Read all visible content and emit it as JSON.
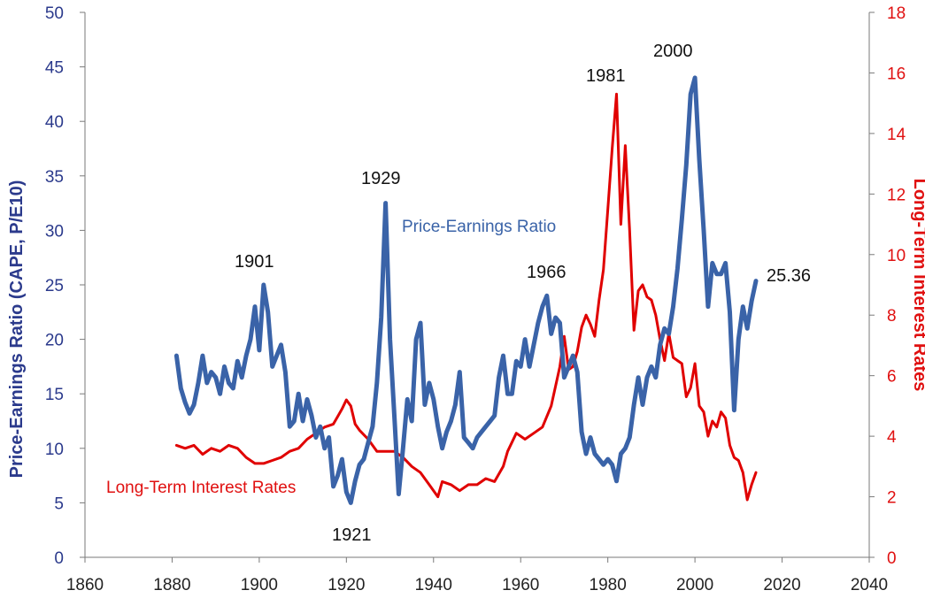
{
  "chart_data": {
    "type": "line",
    "title": "",
    "xlabel": "",
    "ylabel_left": "Price-Earnings Ratio (CAPE, P/E10)",
    "ylabel_right": "Long-Term Interest Rates",
    "xlim": [
      1860,
      2040
    ],
    "ylim_left": [
      0,
      50
    ],
    "ylim_right": [
      0,
      18
    ],
    "x_ticks": [
      "1860",
      "1880",
      "1900",
      "1920",
      "1940",
      "1960",
      "1980",
      "2000",
      "2020",
      "2040"
    ],
    "y_left_ticks": [
      "0",
      "5",
      "10",
      "15",
      "20",
      "25",
      "30",
      "35",
      "40",
      "45",
      "50"
    ],
    "y_right_ticks": [
      "0",
      "2",
      "4",
      "6",
      "8",
      "10",
      "12",
      "14",
      "16",
      "18"
    ],
    "grid": false,
    "series": [
      {
        "name": "Price-Earnings Ratio",
        "axis": "left",
        "color": "#3a63a8",
        "points": [
          [
            1881,
            18.5
          ],
          [
            1882,
            15.5
          ],
          [
            1883,
            14.2
          ],
          [
            1884,
            13.2
          ],
          [
            1885,
            14.0
          ],
          [
            1886,
            16.0
          ],
          [
            1887,
            18.5
          ],
          [
            1888,
            16.0
          ],
          [
            1889,
            17.0
          ],
          [
            1890,
            16.5
          ],
          [
            1891,
            15.0
          ],
          [
            1892,
            17.5
          ],
          [
            1893,
            16.0
          ],
          [
            1894,
            15.5
          ],
          [
            1895,
            18.0
          ],
          [
            1896,
            16.5
          ],
          [
            1897,
            18.5
          ],
          [
            1898,
            20.0
          ],
          [
            1899,
            23.0
          ],
          [
            1900,
            19.0
          ],
          [
            1901,
            25.0
          ],
          [
            1902,
            22.5
          ],
          [
            1903,
            17.5
          ],
          [
            1904,
            18.5
          ],
          [
            1905,
            19.5
          ],
          [
            1906,
            17.0
          ],
          [
            1907,
            12.0
          ],
          [
            1908,
            12.5
          ],
          [
            1909,
            15.0
          ],
          [
            1910,
            12.5
          ],
          [
            1911,
            14.5
          ],
          [
            1912,
            13.0
          ],
          [
            1913,
            11.0
          ],
          [
            1914,
            12.0
          ],
          [
            1915,
            10.0
          ],
          [
            1916,
            11.0
          ],
          [
            1917,
            6.5
          ],
          [
            1918,
            7.5
          ],
          [
            1919,
            9.0
          ],
          [
            1920,
            6.0
          ],
          [
            1921,
            5.0
          ],
          [
            1922,
            7.0
          ],
          [
            1923,
            8.5
          ],
          [
            1924,
            9.0
          ],
          [
            1925,
            10.5
          ],
          [
            1926,
            12.0
          ],
          [
            1927,
            16.0
          ],
          [
            1928,
            22.0
          ],
          [
            1929,
            32.5
          ],
          [
            1930,
            20.0
          ],
          [
            1931,
            13.0
          ],
          [
            1932,
            5.8
          ],
          [
            1933,
            10.0
          ],
          [
            1934,
            14.5
          ],
          [
            1935,
            12.5
          ],
          [
            1936,
            20.0
          ],
          [
            1937,
            21.5
          ],
          [
            1938,
            14.0
          ],
          [
            1939,
            16.0
          ],
          [
            1940,
            14.5
          ],
          [
            1941,
            12.0
          ],
          [
            1942,
            10.0
          ],
          [
            1943,
            11.5
          ],
          [
            1944,
            12.5
          ],
          [
            1945,
            14.0
          ],
          [
            1946,
            17.0
          ],
          [
            1947,
            11.0
          ],
          [
            1948,
            10.5
          ],
          [
            1949,
            10.0
          ],
          [
            1950,
            11.0
          ],
          [
            1951,
            11.5
          ],
          [
            1952,
            12.0
          ],
          [
            1953,
            12.5
          ],
          [
            1954,
            13.0
          ],
          [
            1955,
            16.5
          ],
          [
            1956,
            18.5
          ],
          [
            1957,
            15.0
          ],
          [
            1958,
            15.0
          ],
          [
            1959,
            18.0
          ],
          [
            1960,
            17.5
          ],
          [
            1961,
            20.0
          ],
          [
            1962,
            17.5
          ],
          [
            1963,
            19.5
          ],
          [
            1964,
            21.5
          ],
          [
            1965,
            23.0
          ],
          [
            1966,
            24.0
          ],
          [
            1967,
            20.5
          ],
          [
            1968,
            22.0
          ],
          [
            1969,
            21.5
          ],
          [
            1970,
            16.5
          ],
          [
            1971,
            17.5
          ],
          [
            1972,
            18.5
          ],
          [
            1973,
            17.0
          ],
          [
            1974,
            11.5
          ],
          [
            1975,
            9.5
          ],
          [
            1976,
            11.0
          ],
          [
            1977,
            9.5
          ],
          [
            1978,
            9.0
          ],
          [
            1979,
            8.5
          ],
          [
            1980,
            9.0
          ],
          [
            1981,
            8.5
          ],
          [
            1982,
            7.0
          ],
          [
            1983,
            9.5
          ],
          [
            1984,
            10.0
          ],
          [
            1985,
            11.0
          ],
          [
            1986,
            14.0
          ],
          [
            1987,
            16.5
          ],
          [
            1988,
            14.0
          ],
          [
            1989,
            16.5
          ],
          [
            1990,
            17.5
          ],
          [
            1991,
            16.5
          ],
          [
            1992,
            19.5
          ],
          [
            1993,
            21.0
          ],
          [
            1994,
            20.5
          ],
          [
            1995,
            23.0
          ],
          [
            1996,
            26.5
          ],
          [
            1997,
            31.0
          ],
          [
            1998,
            36.0
          ],
          [
            1999,
            42.5
          ],
          [
            2000,
            44.0
          ],
          [
            2001,
            36.5
          ],
          [
            2002,
            30.0
          ],
          [
            2003,
            23.0
          ],
          [
            2004,
            27.0
          ],
          [
            2005,
            26.0
          ],
          [
            2006,
            26.0
          ],
          [
            2007,
            27.0
          ],
          [
            2008,
            22.5
          ],
          [
            2009,
            13.5
          ],
          [
            2010,
            20.0
          ],
          [
            2011,
            23.0
          ],
          [
            2012,
            21.0
          ],
          [
            2013,
            23.5
          ],
          [
            2014,
            25.36
          ]
        ]
      },
      {
        "name": "Long-Term Interest Rates",
        "axis": "right",
        "color": "#e00000",
        "points": [
          [
            1881,
            3.7
          ],
          [
            1883,
            3.6
          ],
          [
            1885,
            3.7
          ],
          [
            1887,
            3.4
          ],
          [
            1889,
            3.6
          ],
          [
            1891,
            3.5
          ],
          [
            1893,
            3.7
          ],
          [
            1895,
            3.6
          ],
          [
            1897,
            3.3
          ],
          [
            1899,
            3.1
          ],
          [
            1901,
            3.1
          ],
          [
            1903,
            3.2
          ],
          [
            1905,
            3.3
          ],
          [
            1907,
            3.5
          ],
          [
            1909,
            3.6
          ],
          [
            1911,
            3.9
          ],
          [
            1913,
            4.1
          ],
          [
            1915,
            4.3
          ],
          [
            1917,
            4.4
          ],
          [
            1919,
            4.9
          ],
          [
            1920,
            5.2
          ],
          [
            1921,
            5.0
          ],
          [
            1922,
            4.4
          ],
          [
            1923,
            4.2
          ],
          [
            1925,
            3.9
          ],
          [
            1927,
            3.5
          ],
          [
            1929,
            3.5
          ],
          [
            1931,
            3.5
          ],
          [
            1933,
            3.3
          ],
          [
            1935,
            3.0
          ],
          [
            1937,
            2.8
          ],
          [
            1939,
            2.4
          ],
          [
            1941,
            2.0
          ],
          [
            1942,
            2.5
          ],
          [
            1944,
            2.4
          ],
          [
            1946,
            2.2
          ],
          [
            1948,
            2.4
          ],
          [
            1950,
            2.4
          ],
          [
            1952,
            2.6
          ],
          [
            1954,
            2.5
          ],
          [
            1956,
            3.0
          ],
          [
            1957,
            3.5
          ],
          [
            1959,
            4.1
          ],
          [
            1961,
            3.9
          ],
          [
            1963,
            4.1
          ],
          [
            1965,
            4.3
          ],
          [
            1967,
            5.0
          ],
          [
            1969,
            6.3
          ],
          [
            1970,
            7.3
          ],
          [
            1971,
            6.2
          ],
          [
            1972,
            6.3
          ],
          [
            1973,
            6.8
          ],
          [
            1974,
            7.6
          ],
          [
            1975,
            8.0
          ],
          [
            1976,
            7.7
          ],
          [
            1977,
            7.3
          ],
          [
            1978,
            8.5
          ],
          [
            1979,
            9.5
          ],
          [
            1980,
            11.5
          ],
          [
            1981,
            13.5
          ],
          [
            1982,
            15.3
          ],
          [
            1983,
            11.0
          ],
          [
            1984,
            13.6
          ],
          [
            1985,
            10.8
          ],
          [
            1986,
            7.5
          ],
          [
            1987,
            8.8
          ],
          [
            1988,
            9.0
          ],
          [
            1989,
            8.6
          ],
          [
            1990,
            8.5
          ],
          [
            1991,
            8.0
          ],
          [
            1992,
            7.2
          ],
          [
            1993,
            6.5
          ],
          [
            1994,
            7.4
          ],
          [
            1995,
            6.6
          ],
          [
            1996,
            6.5
          ],
          [
            1997,
            6.4
          ],
          [
            1998,
            5.3
          ],
          [
            1999,
            5.6
          ],
          [
            2000,
            6.4
          ],
          [
            2001,
            5.0
          ],
          [
            2002,
            4.8
          ],
          [
            2003,
            4.0
          ],
          [
            2004,
            4.5
          ],
          [
            2005,
            4.3
          ],
          [
            2006,
            4.8
          ],
          [
            2007,
            4.6
          ],
          [
            2008,
            3.7
          ],
          [
            2009,
            3.3
          ],
          [
            2010,
            3.2
          ],
          [
            2011,
            2.8
          ],
          [
            2012,
            1.9
          ],
          [
            2013,
            2.4
          ],
          [
            2014,
            2.8
          ]
        ]
      }
    ],
    "annotations": [
      "1901",
      "1929",
      "1921",
      "1966",
      "1981",
      "2000",
      "25.36"
    ]
  }
}
